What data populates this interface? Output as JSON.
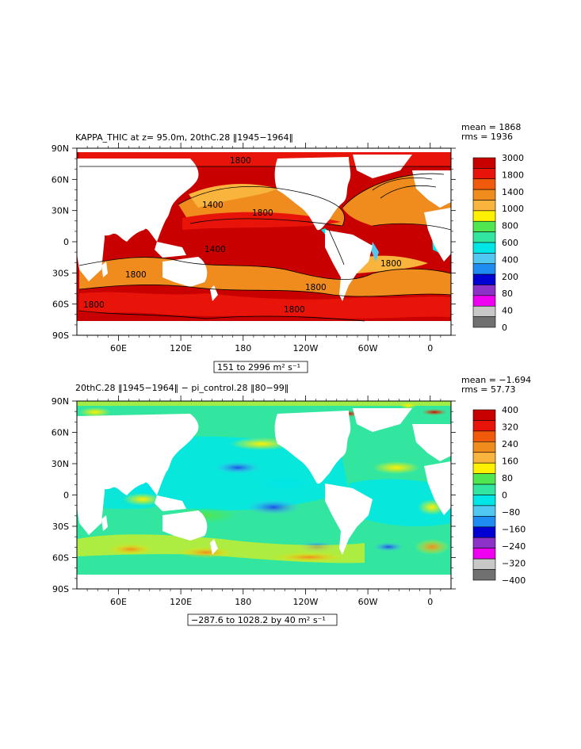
{
  "panels": [
    {
      "title": "KAPPA_THIC at z=  95.0m, 20thC.28 ‖1945−1964‖",
      "stats": {
        "mean": "mean = 1868",
        "rms": "rms = 1936"
      },
      "range_box": "151 to 2996 m² s⁻¹",
      "lat_labels": [
        "90N",
        "60N",
        "30N",
        "0",
        "30S",
        "60S",
        "90S"
      ],
      "lon_labels": [
        "60E",
        "120E",
        "180",
        "120W",
        "60W",
        "0"
      ],
      "colorbar_labels": [
        "3000",
        "1800",
        "1400",
        "1000",
        "800",
        "600",
        "400",
        "200",
        "80",
        "40",
        "0"
      ],
      "colorbar_colors": [
        "#c80000",
        "#e8140a",
        "#f05a0a",
        "#f08c1e",
        "#f8b43c",
        "#fff000",
        "#50e650",
        "#32e6a0",
        "#00e6e6",
        "#50c8f0",
        "#1e8cf0",
        "#0000d2",
        "#8c32c8",
        "#f000f0",
        "#c8c8c8",
        "#707070"
      ],
      "contour_labels": [
        "1800",
        "1400",
        "1800",
        "1400",
        "1800",
        "1800",
        "1800",
        "1800",
        "1800"
      ]
    },
    {
      "title": "20thC.28 ‖1945−1964‖ − pi_control.28 ‖80−99‖",
      "stats": {
        "mean": "mean = −1.694",
        "rms": "rms = 57.73"
      },
      "range_box": "−287.6 to 1028.2 by 40 m² s⁻¹",
      "lat_labels": [
        "90N",
        "60N",
        "30N",
        "0",
        "30S",
        "60S",
        "90S"
      ],
      "lon_labels": [
        "60E",
        "120E",
        "180",
        "120W",
        "60W",
        "0"
      ],
      "colorbar_labels": [
        "400",
        "320",
        "240",
        "160",
        "80",
        "0",
        "−80",
        "−160",
        "−240",
        "−320",
        "−400"
      ],
      "colorbar_colors": [
        "#c80000",
        "#e8140a",
        "#f05a0a",
        "#f08c1e",
        "#f8b43c",
        "#fff000",
        "#50e650",
        "#32e6a0",
        "#00e6e6",
        "#50c8f0",
        "#1e8cf0",
        "#0000d2",
        "#8c32c8",
        "#f000f0",
        "#c8c8c8",
        "#707070"
      ]
    }
  ]
}
